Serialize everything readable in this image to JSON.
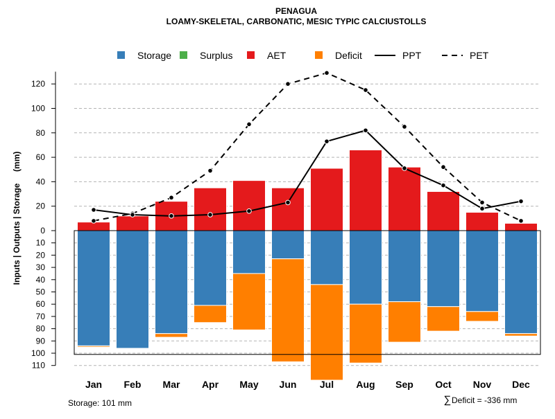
{
  "chart_data": {
    "type": "bar",
    "title": "PENAGUA",
    "subtitle": "LOAMY-SKELETAL, CARBONATIC, MESIC TYPIC CALCIUSTOLLS",
    "ylabel": "Inputs | Outputs | Storage     (mm)",
    "xlabel": "",
    "categories": [
      "Jan",
      "Feb",
      "Mar",
      "Apr",
      "May",
      "Jun",
      "Jul",
      "Aug",
      "Sep",
      "Oct",
      "Nov",
      "Dec"
    ],
    "ylim_top": [
      0,
      130
    ],
    "ylim_bottom": [
      0,
      110
    ],
    "yticks_top": [
      0,
      20,
      40,
      60,
      80,
      100,
      120
    ],
    "yticks_bottom": [
      10,
      20,
      30,
      40,
      50,
      60,
      70,
      80,
      90,
      100,
      110
    ],
    "storage_capacity": 101,
    "legend": [
      {
        "label": "Storage",
        "kind": "box",
        "color": "#377eb8"
      },
      {
        "label": "Surplus",
        "kind": "box",
        "color": "#4daf4a"
      },
      {
        "label": "AET",
        "kind": "box",
        "color": "#e41a1c"
      },
      {
        "label": "Deficit",
        "kind": "box",
        "color": "#ff7f00"
      },
      {
        "label": "PPT",
        "kind": "solid",
        "color": "#000000"
      },
      {
        "label": "PET",
        "kind": "dashed",
        "color": "#000000"
      }
    ],
    "series": [
      {
        "name": "AET",
        "values": [
          7,
          12,
          24,
          35,
          41,
          35,
          51,
          66,
          52,
          32,
          15,
          6
        ]
      },
      {
        "name": "Surplus",
        "values": [
          0,
          0,
          0,
          0,
          0,
          0,
          0,
          0,
          0,
          0,
          0,
          0
        ]
      },
      {
        "name": "Storage",
        "values": [
          94,
          96,
          84,
          61,
          35,
          23,
          44,
          60,
          58,
          62,
          66,
          84
        ]
      },
      {
        "name": "Deficit",
        "values": [
          1,
          0,
          3,
          14,
          46,
          84,
          78,
          48,
          33,
          20,
          8,
          2
        ]
      },
      {
        "name": "PPT",
        "values": [
          17,
          13,
          12,
          13,
          16,
          23,
          73,
          82,
          51,
          37,
          18,
          24
        ]
      },
      {
        "name": "PET",
        "values": [
          8,
          14,
          27,
          49,
          87,
          120,
          129,
          115,
          85,
          52,
          23,
          8
        ]
      }
    ],
    "footer_left": "Storage: 101 mm",
    "footer_right_symbol": "∑",
    "footer_right": "Deficit = -336 mm"
  }
}
